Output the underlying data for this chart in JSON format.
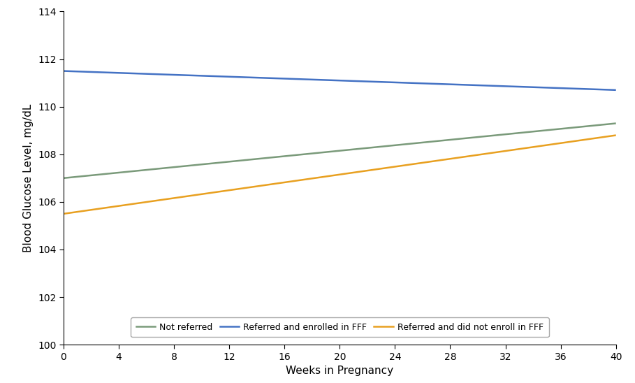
{
  "lines": [
    {
      "label": "Not referred",
      "color": "#7a9a7a",
      "x": [
        0,
        40
      ],
      "y": [
        107.0,
        109.3
      ]
    },
    {
      "label": "Referred and enrolled in FFF",
      "color": "#4472c4",
      "x": [
        0,
        40
      ],
      "y": [
        111.5,
        110.7
      ]
    },
    {
      "label": "Referred and did not enroll in FFF",
      "color": "#e8a020",
      "x": [
        0,
        40
      ],
      "y": [
        105.5,
        108.8
      ]
    }
  ],
  "xlabel": "Weeks in Pregnancy",
  "ylabel": "Blood Glucose Level, mg/dL",
  "xlim": [
    0,
    40
  ],
  "ylim": [
    100,
    114
  ],
  "xticks": [
    0,
    4,
    8,
    12,
    16,
    20,
    24,
    28,
    32,
    36,
    40
  ],
  "yticks": [
    100,
    102,
    104,
    106,
    108,
    110,
    112,
    114
  ],
  "line_width": 1.8,
  "background_color": "#ffffff",
  "xlabel_fontsize": 11,
  "ylabel_fontsize": 11,
  "tick_fontsize": 10,
  "legend_fontsize": 9
}
